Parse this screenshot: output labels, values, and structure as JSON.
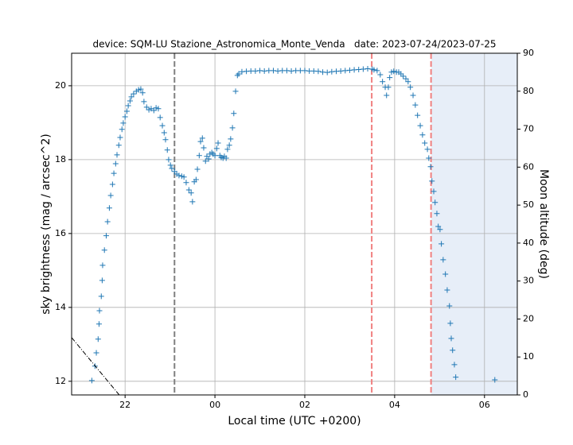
{
  "chart_data": {
    "type": "scatter",
    "title": "device: SQM-LU Stazione_Astronomica_Monte_Venda   date: 2023-07-24/2023-07-25",
    "x_label": "Local time (UTC +0200)",
    "y_label": "sky brightness (mag / arcsec^2)",
    "y2_label": "Moon altitude (deg)",
    "xlim": [
      20.81,
      30.73
    ],
    "xticks": [
      {
        "value": 22,
        "label": "22"
      },
      {
        "value": 24,
        "label": "00"
      },
      {
        "value": 26,
        "label": "02"
      },
      {
        "value": 28,
        "label": "04"
      },
      {
        "value": 30,
        "label": "06"
      }
    ],
    "ylim": [
      11.63,
      20.88
    ],
    "yticks": [
      12,
      14,
      16,
      18,
      20
    ],
    "y2lim": [
      0,
      90
    ],
    "y2ticks": [
      0,
      10,
      20,
      30,
      40,
      50,
      60,
      70,
      80,
      90
    ],
    "grid": true,
    "vlines": [
      {
        "x": 23.1,
        "color": "#7f7f7f"
      },
      {
        "x": 27.49,
        "color": "#f08080"
      },
      {
        "x": 28.81,
        "color": "#f08080"
      }
    ],
    "shade": {
      "x": [
        28.81,
        30.73
      ],
      "color": "#e7eef8"
    },
    "series": [
      {
        "marker": "+",
        "color": "#1f77b4",
        "x": [
          21.26,
          21.33,
          21.36,
          21.4,
          21.42,
          21.43,
          21.47,
          21.49,
          21.5,
          21.54,
          21.58,
          21.61,
          21.65,
          21.68,
          21.72,
          21.75,
          21.79,
          21.82,
          21.86,
          21.89,
          21.93,
          21.96,
          22.0,
          22.04,
          22.07,
          22.11,
          22.14,
          22.19,
          22.25,
          22.3,
          22.35,
          22.39,
          22.42,
          22.48,
          22.53,
          22.58,
          22.64,
          22.69,
          22.74,
          22.78,
          22.83,
          22.87,
          22.9,
          22.94,
          22.97,
          23.01,
          23.04,
          23.1,
          23.15,
          23.2,
          23.26,
          23.31,
          23.36,
          23.42,
          23.47,
          23.5,
          23.54,
          23.58,
          23.61,
          23.65,
          23.68,
          23.72,
          23.75,
          23.79,
          23.82,
          23.86,
          23.89,
          23.93,
          23.96,
          24.0,
          24.04,
          24.07,
          24.11,
          24.14,
          24.18,
          24.21,
          24.25,
          24.28,
          24.32,
          24.35,
          24.39,
          24.42,
          24.46,
          24.5,
          24.53,
          24.6,
          24.7,
          24.8,
          24.9,
          25.0,
          25.1,
          25.2,
          25.3,
          25.4,
          25.5,
          25.6,
          25.7,
          25.8,
          25.9,
          26.0,
          26.1,
          26.2,
          26.3,
          26.4,
          26.5,
          26.6,
          26.7,
          26.8,
          26.9,
          27.0,
          27.1,
          27.2,
          27.3,
          27.4,
          27.5,
          27.54,
          27.61,
          27.68,
          27.73,
          27.79,
          27.82,
          27.86,
          27.89,
          27.93,
          27.98,
          28.04,
          28.09,
          28.14,
          28.19,
          28.25,
          28.3,
          28.35,
          28.41,
          28.46,
          28.51,
          28.57,
          28.62,
          28.67,
          28.73,
          28.76,
          28.8,
          28.83,
          28.87,
          28.9,
          28.94,
          28.97,
          29.01,
          29.04,
          29.08,
          29.13,
          29.17,
          29.22,
          29.24,
          29.26,
          29.29,
          29.33,
          29.36,
          30.23
        ],
        "values": [
          12.02,
          12.41,
          12.77,
          13.14,
          13.55,
          13.91,
          14.3,
          14.73,
          15.14,
          15.55,
          15.94,
          16.32,
          16.69,
          17.03,
          17.33,
          17.63,
          17.89,
          18.13,
          18.39,
          18.6,
          18.82,
          18.99,
          19.16,
          19.31,
          19.46,
          19.59,
          19.7,
          19.78,
          19.85,
          19.89,
          19.91,
          19.81,
          19.57,
          19.42,
          19.35,
          19.38,
          19.33,
          19.4,
          19.38,
          19.14,
          18.92,
          18.73,
          18.54,
          18.26,
          18.0,
          17.85,
          17.76,
          17.68,
          17.61,
          17.57,
          17.55,
          17.53,
          17.38,
          17.18,
          17.1,
          16.86,
          17.4,
          17.46,
          17.74,
          18.11,
          18.49,
          18.58,
          18.32,
          17.96,
          18.09,
          18.02,
          18.15,
          18.19,
          18.15,
          18.11,
          18.3,
          18.45,
          18.11,
          18.06,
          18.04,
          18.09,
          18.04,
          18.28,
          18.39,
          18.56,
          18.86,
          19.25,
          19.85,
          20.28,
          20.32,
          20.38,
          20.39,
          20.4,
          20.4,
          20.41,
          20.4,
          20.41,
          20.41,
          20.4,
          20.41,
          20.41,
          20.4,
          20.41,
          20.41,
          20.41,
          20.4,
          20.4,
          20.39,
          20.37,
          20.36,
          20.38,
          20.39,
          20.4,
          20.41,
          20.42,
          20.43,
          20.44,
          20.45,
          20.46,
          20.45,
          20.43,
          20.41,
          20.3,
          20.11,
          19.96,
          19.74,
          19.96,
          20.22,
          20.37,
          20.39,
          20.37,
          20.37,
          20.32,
          20.26,
          20.19,
          20.11,
          19.96,
          19.74,
          19.48,
          19.2,
          18.92,
          18.67,
          18.45,
          18.28,
          18.04,
          17.81,
          17.42,
          17.14,
          16.84,
          16.54,
          16.19,
          16.11,
          15.72,
          15.29,
          14.9,
          14.47,
          14.04,
          13.57,
          13.16,
          12.84,
          12.45,
          12.11,
          12.04
        ]
      },
      {
        "axis": "y2",
        "color": "#000000",
        "linestyle": "dashdot",
        "x": [
          20.81,
          21.87
        ],
        "values": [
          15.1,
          0
        ]
      }
    ]
  }
}
